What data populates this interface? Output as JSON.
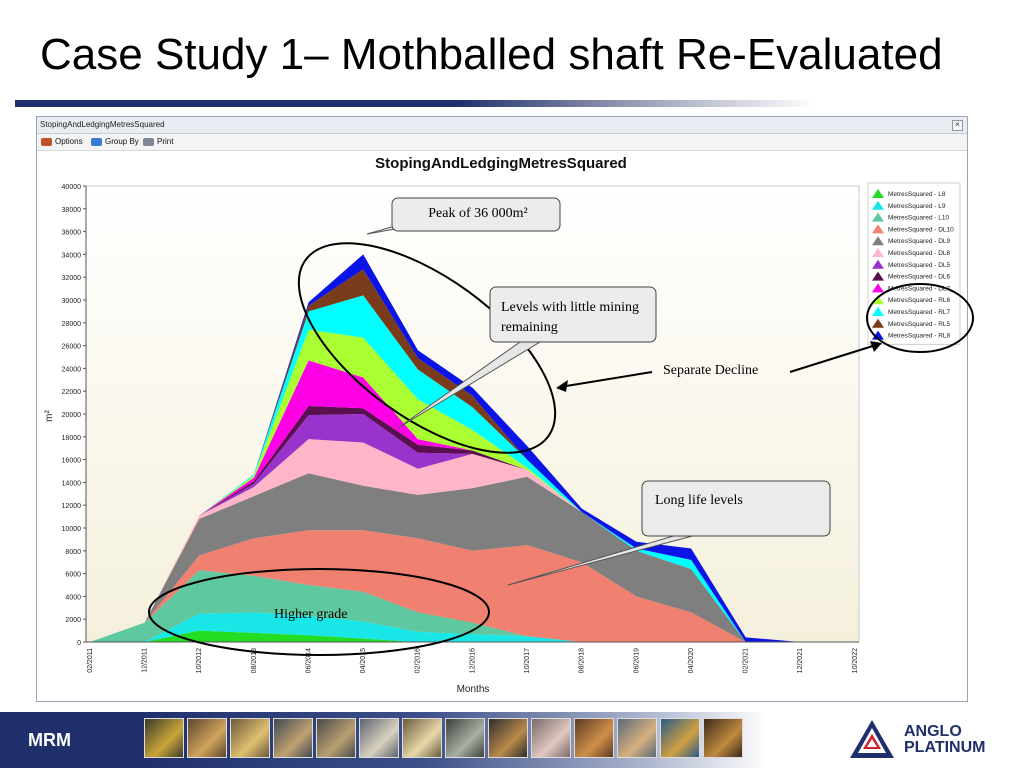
{
  "slide": {
    "title": "Case Study 1– Mothballed shaft Re-Evaluated"
  },
  "window": {
    "title": "StopingAndLedgingMetresSquared",
    "close_glyph": "×",
    "toolbar": {
      "options_label": "Options",
      "group_by_label": "Group By",
      "print_label": "Print"
    }
  },
  "annotations": {
    "peak": "Peak of 36 000m²",
    "levels_little": "Levels with little mining remaining",
    "separate_decline": "Separate Decline",
    "long_life": "Long life levels",
    "higher_grade": "Higher grade"
  },
  "footer": {
    "brand": "MRM",
    "logo_line1": "ANGLO",
    "logo_line2": "PLATINUM",
    "logo_icon": "anglo-platinum-logo"
  },
  "chart_data": {
    "type": "area",
    "stacked": true,
    "title": "StopingAndLedgingMetresSquared",
    "xlabel": "Months",
    "ylabel": "m²",
    "ylim": [
      0,
      40000
    ],
    "yticks": [
      0,
      2000,
      4000,
      6000,
      8000,
      10000,
      12000,
      14000,
      16000,
      18000,
      20000,
      22000,
      24000,
      26000,
      28000,
      30000,
      32000,
      34000,
      36000,
      38000,
      40000
    ],
    "xtick_labels": [
      "02/2011",
      "12/2011",
      "10/2012",
      "08/2013",
      "06/2014",
      "04/2015",
      "02/2016",
      "12/2016",
      "10/2017",
      "08/2018",
      "06/2019",
      "04/2020",
      "02/2021",
      "12/2021",
      "10/2022"
    ],
    "x": [
      "02/2011",
      "12/2011",
      "10/2012",
      "08/2013",
      "06/2014",
      "04/2015",
      "02/2016",
      "12/2016",
      "10/2017",
      "08/2018",
      "06/2019",
      "04/2020",
      "02/2021",
      "12/2021",
      "10/2022"
    ],
    "legend_position": "right",
    "grid": false,
    "series": [
      {
        "name": "MetresSquared - L8",
        "color": "#22dd22",
        "values": [
          0,
          0,
          1000,
          800,
          600,
          300,
          0,
          0,
          0,
          0,
          0,
          0,
          0,
          0,
          0
        ]
      },
      {
        "name": "MetresSquared - L9",
        "color": "#19e6e6",
        "values": [
          0,
          0,
          1500,
          1800,
          1700,
          1500,
          900,
          700,
          500,
          0,
          0,
          0,
          0,
          0,
          0
        ]
      },
      {
        "name": "MetresSquared - L10",
        "color": "#5fc8a0",
        "values": [
          0,
          1700,
          3800,
          3200,
          2700,
          2600,
          1700,
          1000,
          0,
          0,
          0,
          0,
          0,
          0,
          0
        ]
      },
      {
        "name": "MetresSquared - DL10",
        "color": "#f08070",
        "values": [
          0,
          0,
          1300,
          3300,
          4800,
          5400,
          6500,
          6300,
          8000,
          7000,
          4000,
          2600,
          0,
          0,
          0
        ]
      },
      {
        "name": "MetresSquared - DL9",
        "color": "#7f7f7f",
        "values": [
          0,
          0,
          3200,
          3700,
          5000,
          3900,
          3800,
          5500,
          6000,
          4400,
          4000,
          3800,
          0,
          0,
          0
        ]
      },
      {
        "name": "MetresSquared - DL8",
        "color": "#ffb6c8",
        "values": [
          0,
          0,
          300,
          800,
          3000,
          3800,
          2300,
          3000,
          600,
          0,
          0,
          0,
          0,
          0,
          0
        ]
      },
      {
        "name": "MetresSquared - DL5",
        "color": "#9933cc",
        "values": [
          0,
          0,
          0,
          300,
          2100,
          2500,
          1400,
          0,
          0,
          0,
          0,
          0,
          0,
          0,
          0
        ]
      },
      {
        "name": "MetresSquared - DL6",
        "color": "#5a0f4e",
        "values": [
          0,
          0,
          0,
          200,
          800,
          500,
          700,
          300,
          0,
          0,
          0,
          0,
          0,
          0,
          0
        ]
      },
      {
        "name": "MetresSquared - DL7",
        "color": "#ff00e6",
        "values": [
          0,
          0,
          0,
          300,
          4000,
          2700,
          500,
          0,
          0,
          0,
          0,
          0,
          0,
          0,
          0
        ]
      },
      {
        "name": "MetresSquared - RL6",
        "color": "#aaff33",
        "values": [
          0,
          0,
          0,
          200,
          2700,
          3500,
          3500,
          1800,
          200,
          0,
          0,
          0,
          0,
          0,
          0
        ]
      },
      {
        "name": "MetresSquared - RL7",
        "color": "#00ffff",
        "values": [
          0,
          0,
          0,
          100,
          1600,
          3700,
          2600,
          2000,
          700,
          0,
          200,
          800,
          0,
          0,
          0
        ]
      },
      {
        "name": "MetresSquared - RL5",
        "color": "#7a3b1a",
        "values": [
          0,
          0,
          0,
          0,
          500,
          2300,
          1000,
          1000,
          0,
          0,
          0,
          0,
          0,
          0,
          0
        ]
      },
      {
        "name": "MetresSquared - RL8",
        "color": "#0a14e6",
        "values": [
          0,
          0,
          0,
          0,
          300,
          1300,
          700,
          700,
          1200,
          300,
          600,
          1000,
          400,
          0,
          0
        ]
      }
    ]
  }
}
